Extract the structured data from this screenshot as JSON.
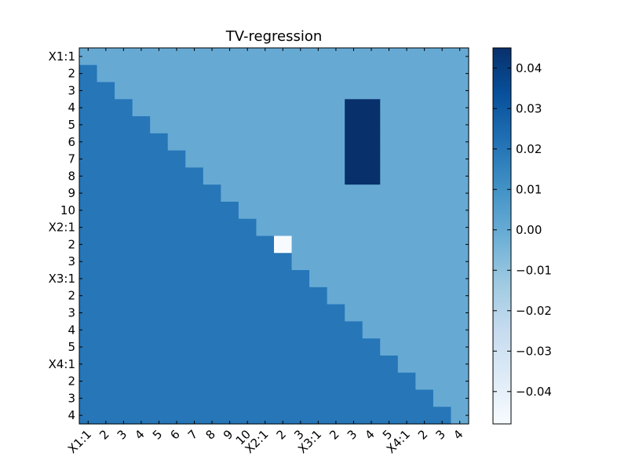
{
  "chart_data": {
    "type": "heatmap",
    "title": "TV-regression",
    "row_labels": [
      "X1:1",
      "2",
      "3",
      "4",
      "5",
      "6",
      "7",
      "8",
      "9",
      "10",
      "X2:1",
      "2",
      "3",
      "X3:1",
      "2",
      "3",
      "4",
      "5",
      "X4:1",
      "2",
      "3",
      "4"
    ],
    "col_labels": [
      "X1:1",
      "2",
      "3",
      "4",
      "5",
      "6",
      "7",
      "8",
      "9",
      "10",
      "X2:1",
      "2",
      "3",
      "X3:1",
      "2",
      "3",
      "4",
      "5",
      "X4:1",
      "2",
      "3",
      "4"
    ],
    "values": {
      "upper_triangle_and_diagonal": 0.0,
      "lower_triangle": 0.02,
      "overrides": [
        {
          "rows": [
            3,
            7
          ],
          "cols": [
            15,
            16
          ],
          "value": 0.045
        },
        {
          "rows": [
            11,
            11
          ],
          "cols": [
            11,
            11
          ],
          "value": -0.048
        },
        {
          "rows": [
            15,
            15
          ],
          "cols": [
            15,
            15
          ],
          "value": 0.0
        },
        {
          "rows": [
            16,
            16
          ],
          "cols": [
            16,
            16
          ],
          "value": 0.0
        }
      ]
    },
    "colorbar": {
      "min": -0.048,
      "max": 0.045,
      "ticks": [
        0.04,
        0.03,
        0.02,
        0.01,
        0.0,
        -0.01,
        -0.02,
        -0.03,
        -0.04
      ],
      "tick_labels": [
        "0.04",
        "0.03",
        "0.02",
        "0.01",
        "0.00",
        "−0.01",
        "−0.02",
        "−0.03",
        "−0.04"
      ],
      "colormap": "Blues",
      "colormap_stops": [
        "#f7fbff",
        "#deebf7",
        "#c6dbef",
        "#9ecae1",
        "#6baed6",
        "#4292c6",
        "#2171b5",
        "#08519c",
        "#08306b"
      ]
    },
    "grid": false,
    "legend": "colorbar-right"
  }
}
